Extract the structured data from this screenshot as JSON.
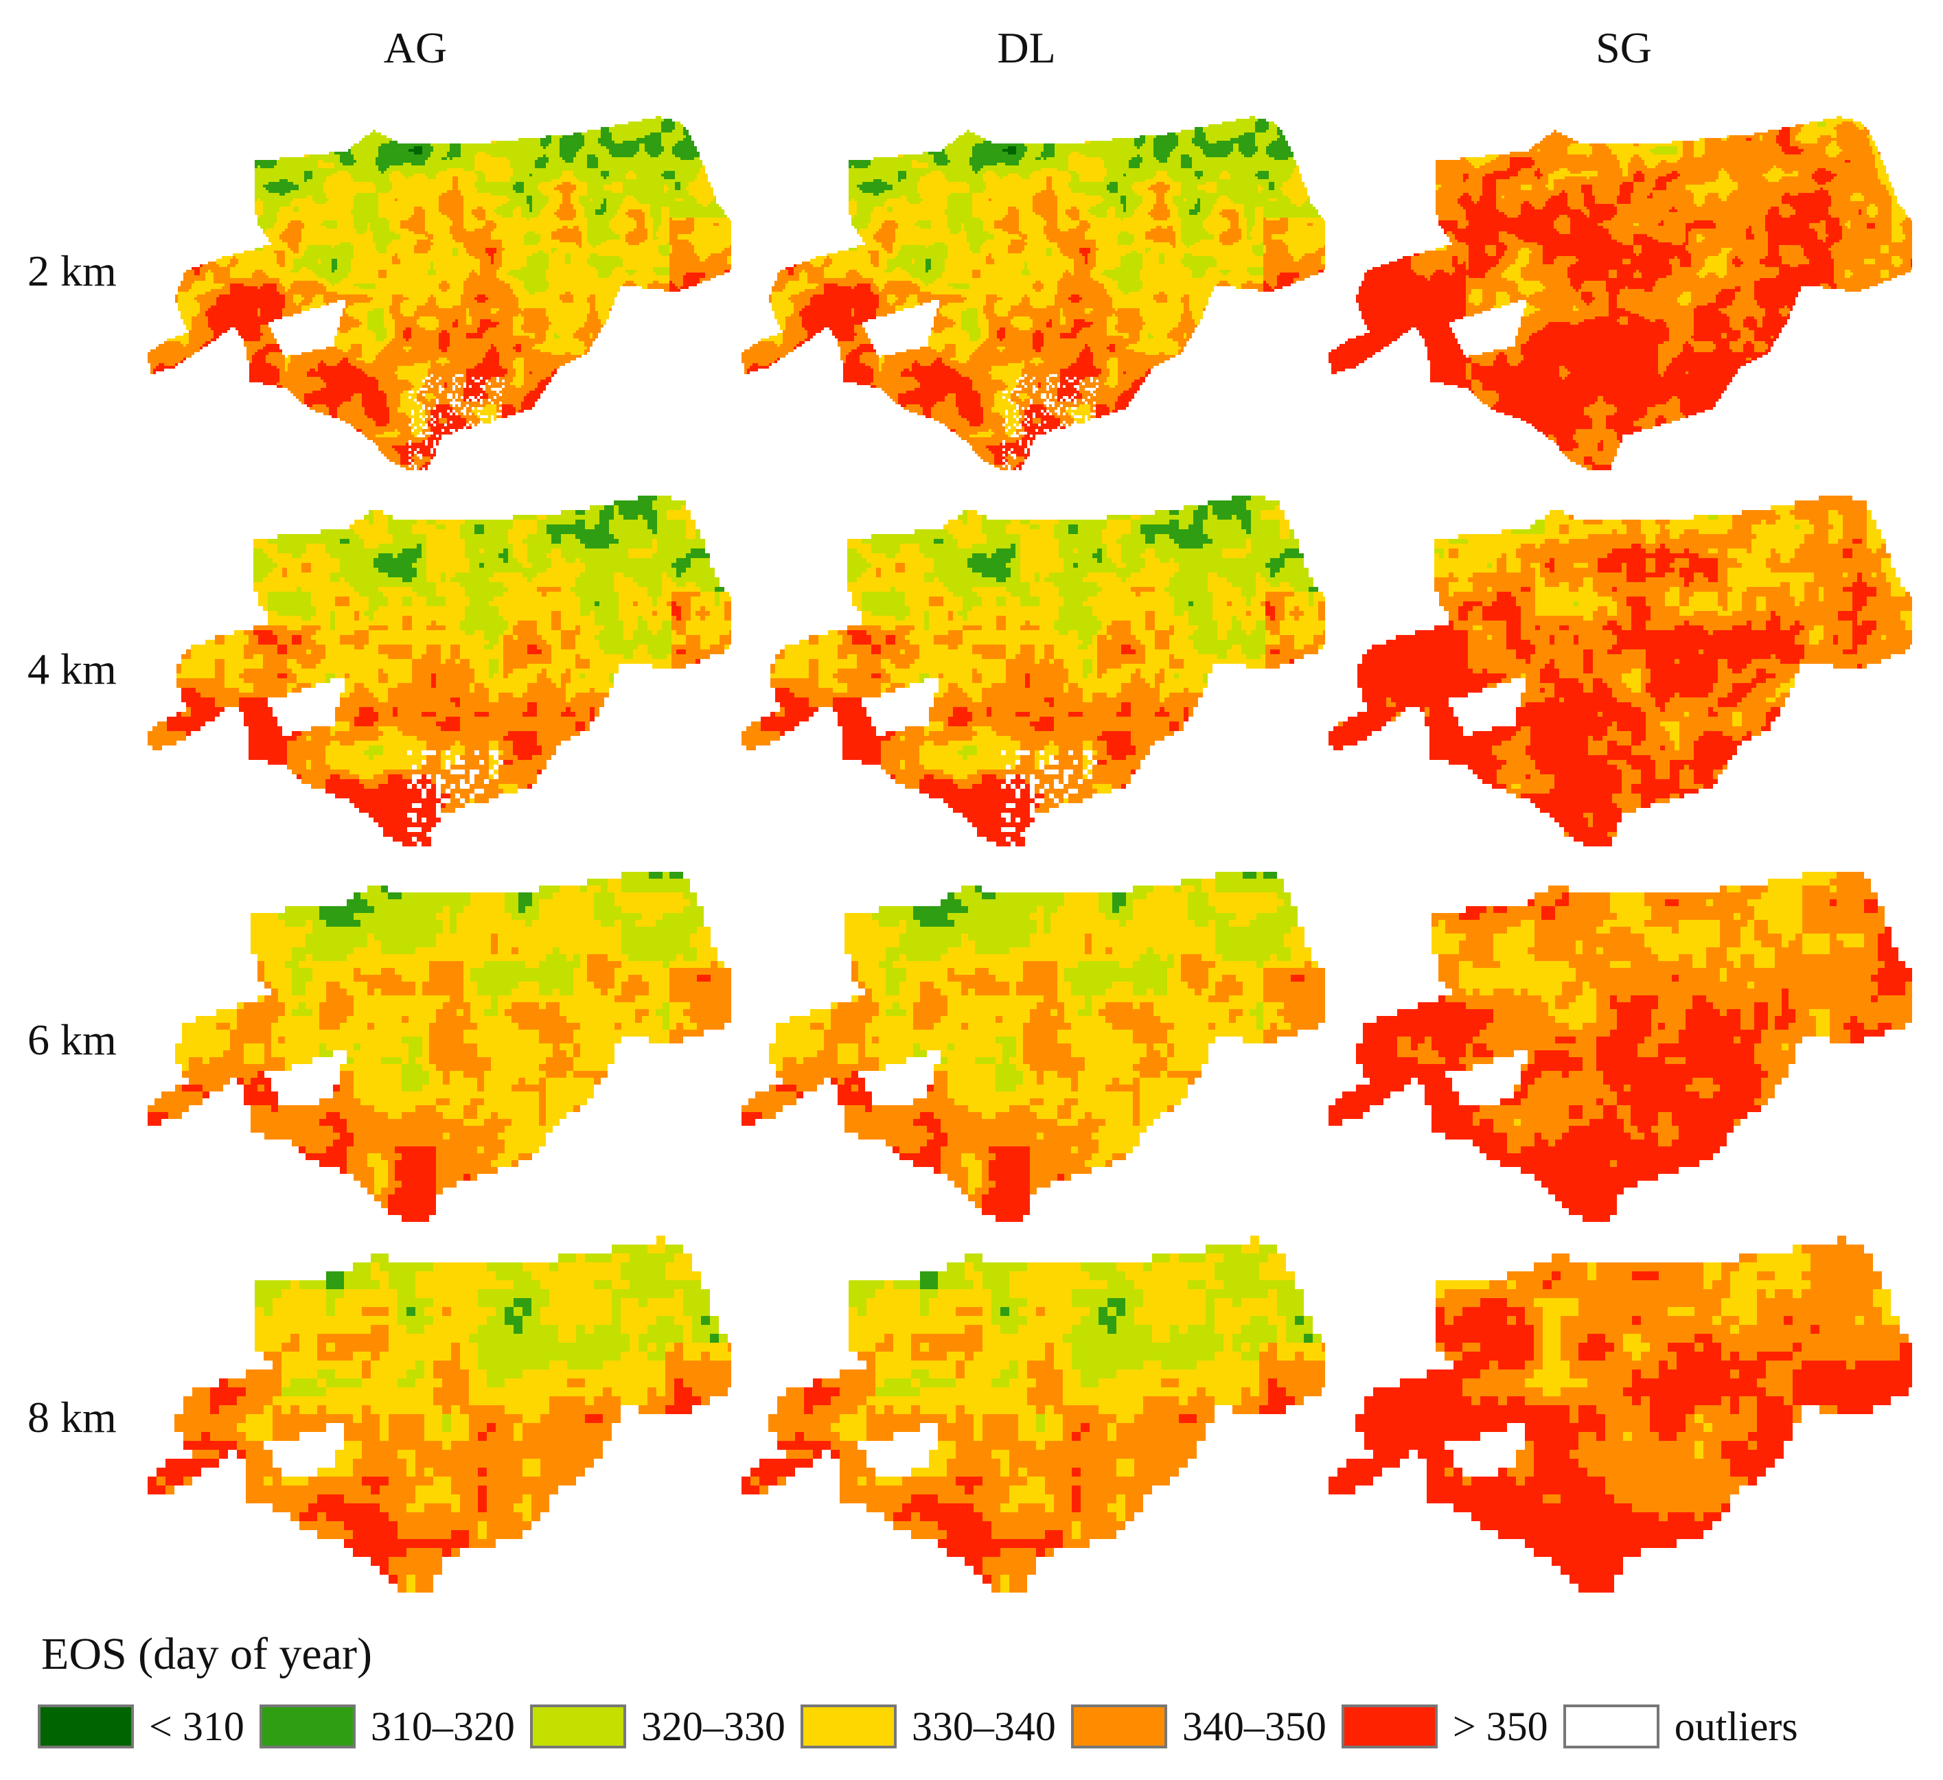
{
  "columns": [
    {
      "label": "AG",
      "method": "ag"
    },
    {
      "label": "DL",
      "method": "dl"
    },
    {
      "label": "SG",
      "method": "sg"
    }
  ],
  "rows": [
    {
      "label": "2 km",
      "resolution_km": 2
    },
    {
      "label": "4 km",
      "resolution_km": 4
    },
    {
      "label": "6 km",
      "resolution_km": 6
    },
    {
      "label": "8 km",
      "resolution_km": 8
    }
  ],
  "legend": {
    "title": "EOS (day of year)",
    "items": [
      {
        "label": "< 310",
        "color": "#006400"
      },
      {
        "label": "310–320",
        "color": "#2f9e12"
      },
      {
        "label": "320–330",
        "color": "#c4e000"
      },
      {
        "label": "330–340",
        "color": "#ffd700"
      },
      {
        "label": "340–350",
        "color": "#ff8c00"
      },
      {
        "label": "> 350",
        "color": "#ff2200"
      },
      {
        "label": "outliers",
        "color": "#ffffff"
      }
    ]
  },
  "colors": {
    "c0": "#006400",
    "c1": "#2f9e12",
    "c2": "#c4e000",
    "c3": "#ffd700",
    "c4": "#ff8c00",
    "c5": "#ff2200",
    "outlier": "#ffffff"
  }
}
